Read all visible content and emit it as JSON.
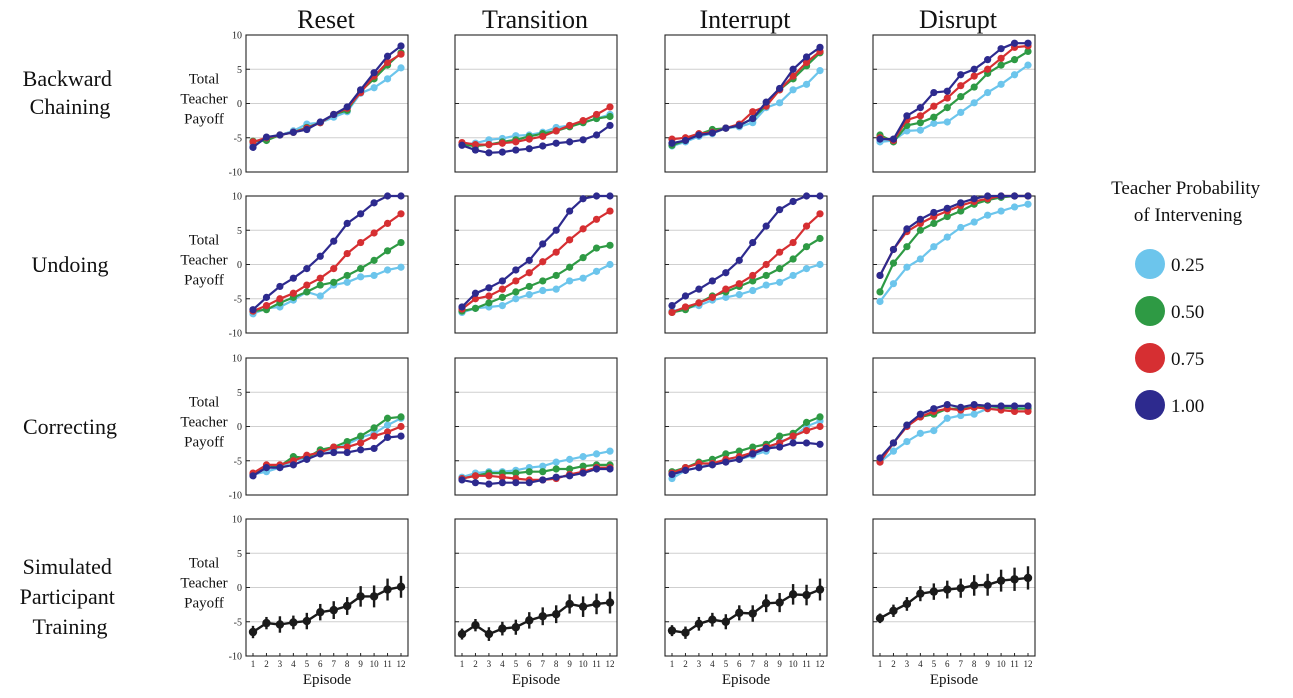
{
  "columns": [
    "Reset",
    "Transition",
    "Interrupt",
    "Disrupt"
  ],
  "rows": [
    {
      "label_lines": [
        "Backward",
        "Chaining"
      ]
    },
    {
      "label_lines": [
        "Undoing"
      ]
    },
    {
      "label_lines": [
        "Correcting"
      ]
    },
    {
      "label_lines": [
        "Simulated",
        "Participant",
        "Training"
      ]
    }
  ],
  "ylabel_lines": [
    "Total",
    "Teacher",
    "Payoff"
  ],
  "xlabel": "Episode",
  "legend": {
    "title_lines": [
      "Teacher Probability",
      "of Intervening"
    ],
    "entries": [
      {
        "label": "0.25",
        "color": "#6cc5ec"
      },
      {
        "label": "0.50",
        "color": "#2e9a44"
      },
      {
        "label": "0.75",
        "color": "#d62f32"
      },
      {
        "label": "1.00",
        "color": "#2d2a8e"
      }
    ]
  },
  "chart_data": {
    "type": "line",
    "x": [
      1,
      2,
      3,
      4,
      5,
      6,
      7,
      8,
      9,
      10,
      11,
      12
    ],
    "xticks": [
      "1",
      "2",
      "3",
      "4",
      "5",
      "6",
      "7",
      "8",
      "9",
      "10",
      "11",
      "12"
    ],
    "ylim": [
      -10,
      10
    ],
    "yticks": [
      10,
      5,
      0,
      -5,
      -10
    ],
    "yticklabels": [
      "10",
      "5",
      "0",
      "-5",
      "-10"
    ],
    "grid": true,
    "series_colors": [
      "#6cc5ec",
      "#2e9a44",
      "#d62f32",
      "#2d2a8e"
    ],
    "black_color": "#1a1a1a",
    "panels": [
      [
        [
          [
            -6.0,
            -5.2,
            -4.6,
            -4.0,
            -3.0,
            -2.8,
            -2.0,
            -1.2,
            1.5,
            2.3,
            3.6,
            5.2
          ],
          [
            -5.5,
            -5.4,
            -4.6,
            -4.2,
            -3.5,
            -2.8,
            -1.6,
            -1.0,
            1.8,
            3.6,
            5.6,
            7.4
          ],
          [
            -5.6,
            -5.0,
            -4.6,
            -4.2,
            -3.6,
            -2.8,
            -1.6,
            -0.7,
            1.6,
            4.0,
            6.0,
            7.2
          ],
          [
            -6.4,
            -4.9,
            -4.6,
            -4.2,
            -3.8,
            -2.7,
            -1.6,
            -0.5,
            2.0,
            4.5,
            6.9,
            8.4
          ]
        ],
        [
          [
            -6.0,
            -5.8,
            -5.3,
            -5.1,
            -4.7,
            -4.6,
            -4.2,
            -3.5,
            -3.2,
            -2.8,
            -2.2,
            -1.6
          ],
          [
            -6.0,
            -6.2,
            -6.0,
            -5.6,
            -5.3,
            -4.8,
            -4.4,
            -4.0,
            -3.4,
            -2.8,
            -2.2,
            -1.9
          ],
          [
            -5.7,
            -6.0,
            -6.0,
            -5.8,
            -5.6,
            -5.2,
            -4.8,
            -4.0,
            -3.2,
            -2.5,
            -1.6,
            -0.5
          ],
          [
            -6.1,
            -6.8,
            -7.2,
            -7.1,
            -6.8,
            -6.6,
            -6.2,
            -5.8,
            -5.6,
            -5.3,
            -4.6,
            -3.2
          ]
        ],
        [
          [
            -6.2,
            -5.6,
            -4.8,
            -4.4,
            -3.6,
            -3.4,
            -2.8,
            -0.6,
            0.1,
            2.0,
            2.8,
            4.8
          ],
          [
            -6.1,
            -5.4,
            -4.5,
            -3.8,
            -3.6,
            -3.2,
            -2.2,
            -0.3,
            2.0,
            3.6,
            5.5,
            7.4
          ],
          [
            -5.2,
            -5.0,
            -4.4,
            -4.2,
            -3.6,
            -3.0,
            -1.2,
            -0.4,
            2.0,
            4.0,
            6.0,
            7.6
          ],
          [
            -5.8,
            -5.4,
            -4.6,
            -4.3,
            -3.6,
            -3.2,
            -2.2,
            0.2,
            2.2,
            5.0,
            6.8,
            8.2
          ]
        ],
        [
          [
            -5.6,
            -5.4,
            -4.0,
            -3.9,
            -2.9,
            -2.7,
            -1.3,
            0.1,
            1.6,
            2.8,
            4.2,
            5.6
          ],
          [
            -4.6,
            -5.6,
            -3.2,
            -2.8,
            -2.0,
            -0.6,
            1.0,
            2.4,
            4.4,
            5.6,
            6.4,
            7.6
          ],
          [
            -5.0,
            -5.4,
            -2.4,
            -1.8,
            -0.4,
            0.8,
            2.6,
            4.0,
            5.0,
            6.6,
            8.2,
            8.4
          ],
          [
            -5.2,
            -5.2,
            -1.8,
            -0.6,
            1.6,
            1.8,
            4.2,
            5.0,
            6.4,
            8.0,
            8.8,
            8.8
          ]
        ]
      ],
      [
        [
          [
            -7.2,
            -6.4,
            -6.2,
            -5.2,
            -4.0,
            -4.6,
            -3.0,
            -2.6,
            -1.8,
            -1.6,
            -0.8,
            -0.4
          ],
          [
            -6.8,
            -6.6,
            -5.6,
            -4.8,
            -4.0,
            -3.0,
            -2.6,
            -1.6,
            -0.6,
            0.6,
            2.0,
            3.2
          ],
          [
            -6.8,
            -6.0,
            -5.0,
            -4.2,
            -3.0,
            -2.0,
            -0.6,
            1.6,
            3.2,
            4.6,
            6.0,
            7.4
          ],
          [
            -6.6,
            -4.8,
            -3.2,
            -2.0,
            -0.6,
            1.2,
            3.4,
            6.0,
            7.4,
            9.0,
            10.0,
            10.0
          ]
        ],
        [
          [
            -7.0,
            -6.4,
            -6.2,
            -6.0,
            -5.0,
            -4.4,
            -3.8,
            -3.6,
            -2.4,
            -2.0,
            -1.0,
            0.0
          ],
          [
            -6.8,
            -6.4,
            -5.6,
            -4.8,
            -4.0,
            -3.2,
            -2.4,
            -1.6,
            -0.4,
            1.0,
            2.4,
            2.8
          ],
          [
            -6.5,
            -5.0,
            -4.6,
            -3.6,
            -2.4,
            -1.2,
            0.4,
            1.8,
            3.6,
            5.2,
            6.6,
            7.8
          ],
          [
            -6.2,
            -4.2,
            -3.4,
            -2.4,
            -0.8,
            0.6,
            3.0,
            5.0,
            7.8,
            9.6,
            10.0,
            10.0
          ]
        ],
        [
          [
            -6.8,
            -6.4,
            -6.0,
            -5.2,
            -4.8,
            -4.4,
            -3.8,
            -3.0,
            -2.6,
            -1.6,
            -0.6,
            0.0
          ],
          [
            -7.0,
            -6.6,
            -5.6,
            -4.6,
            -4.0,
            -3.2,
            -2.4,
            -1.6,
            -0.6,
            0.8,
            2.6,
            3.8
          ],
          [
            -7.0,
            -6.2,
            -5.6,
            -4.8,
            -3.6,
            -2.8,
            -1.6,
            0.0,
            1.8,
            3.2,
            5.6,
            7.4
          ],
          [
            -6.0,
            -4.6,
            -3.6,
            -2.4,
            -1.2,
            0.6,
            3.2,
            5.6,
            8.0,
            9.2,
            10.0,
            10.0
          ]
        ],
        [
          [
            -5.4,
            -2.8,
            -0.4,
            0.8,
            2.6,
            4.0,
            5.4,
            6.2,
            7.2,
            7.8,
            8.4,
            8.8
          ],
          [
            -4.0,
            0.2,
            2.6,
            5.0,
            6.0,
            7.0,
            7.8,
            8.8,
            9.4,
            9.8,
            10.0,
            10.0
          ],
          [
            -1.6,
            2.2,
            4.8,
            6.0,
            7.0,
            7.8,
            8.6,
            9.2,
            9.6,
            10.0,
            10.0,
            10.0
          ],
          [
            -1.6,
            2.2,
            5.2,
            6.6,
            7.6,
            8.2,
            9.0,
            9.6,
            10.0,
            10.0,
            10.0,
            10.0
          ]
        ]
      ],
      [
        [
          [
            -7.0,
            -6.6,
            -6.0,
            -5.0,
            -4.6,
            -3.6,
            -3.4,
            -2.6,
            -1.6,
            -1.0,
            0.2,
            1.2
          ],
          [
            -7.0,
            -6.0,
            -5.8,
            -4.4,
            -4.6,
            -3.4,
            -3.0,
            -2.2,
            -1.4,
            -0.2,
            1.2,
            1.4
          ],
          [
            -6.8,
            -5.6,
            -5.6,
            -5.0,
            -4.2,
            -3.8,
            -3.0,
            -3.0,
            -2.4,
            -1.4,
            -0.8,
            0.0
          ],
          [
            -7.2,
            -6.0,
            -6.0,
            -5.6,
            -4.8,
            -4.0,
            -3.8,
            -3.8,
            -3.4,
            -3.2,
            -1.6,
            -1.4
          ]
        ],
        [
          [
            -7.4,
            -6.8,
            -6.6,
            -6.6,
            -6.4,
            -6.0,
            -5.8,
            -5.2,
            -4.8,
            -4.4,
            -4.0,
            -3.6
          ],
          [
            -7.6,
            -7.2,
            -6.8,
            -6.8,
            -6.8,
            -6.6,
            -6.6,
            -6.2,
            -6.2,
            -5.8,
            -5.6,
            -5.6
          ],
          [
            -7.6,
            -7.2,
            -7.2,
            -7.4,
            -7.6,
            -7.8,
            -7.8,
            -7.6,
            -7.0,
            -6.6,
            -6.0,
            -6.0
          ],
          [
            -7.8,
            -8.2,
            -8.4,
            -8.2,
            -8.2,
            -8.2,
            -7.8,
            -7.4,
            -7.2,
            -6.8,
            -6.2,
            -6.2
          ]
        ],
        [
          [
            -7.6,
            -6.4,
            -6.0,
            -5.4,
            -5.0,
            -4.8,
            -4.2,
            -3.6,
            -2.2,
            -1.6,
            0.0,
            0.8
          ],
          [
            -6.6,
            -6.0,
            -5.2,
            -4.8,
            -4.0,
            -3.6,
            -3.0,
            -2.6,
            -1.4,
            -1.0,
            0.6,
            1.4
          ],
          [
            -6.8,
            -6.0,
            -5.4,
            -5.4,
            -4.8,
            -4.4,
            -3.8,
            -3.0,
            -2.4,
            -1.4,
            -0.6,
            0.0
          ],
          [
            -7.0,
            -6.4,
            -6.0,
            -5.6,
            -5.2,
            -4.8,
            -4.0,
            -3.2,
            -3.0,
            -2.4,
            -2.4,
            -2.6
          ]
        ],
        [
          [
            -5.2,
            -3.6,
            -2.2,
            -1.0,
            -0.6,
            1.2,
            1.6,
            1.8,
            2.6,
            2.6,
            2.8,
            2.6
          ],
          [
            -5.0,
            -2.4,
            0.2,
            1.4,
            1.8,
            2.6,
            2.6,
            2.8,
            3.0,
            2.8,
            2.6,
            2.6
          ],
          [
            -5.2,
            -2.4,
            0.0,
            1.4,
            2.2,
            2.6,
            2.4,
            2.8,
            2.6,
            2.4,
            2.2,
            2.2
          ],
          [
            -4.6,
            -2.4,
            0.2,
            1.8,
            2.6,
            3.2,
            2.8,
            3.2,
            3.0,
            3.0,
            3.0,
            3.0
          ]
        ]
      ],
      [
        [
          [
            -6.5,
            -5.2,
            -5.4,
            -5.1,
            -4.9,
            -3.6,
            -3.3,
            -2.7,
            -1.3,
            -1.3,
            -0.3,
            0.1
          ]
        ],
        [
          [
            -6.8,
            -5.5,
            -6.8,
            -6.0,
            -5.8,
            -4.8,
            -4.2,
            -3.9,
            -2.4,
            -2.8,
            -2.4,
            -2.2
          ]
        ],
        [
          [
            -6.3,
            -6.6,
            -5.3,
            -4.7,
            -5.0,
            -3.7,
            -3.8,
            -2.3,
            -2.2,
            -1.0,
            -1.1,
            -0.3
          ]
        ],
        [
          [
            -4.5,
            -3.4,
            -2.4,
            -0.9,
            -0.6,
            -0.3,
            -0.1,
            0.3,
            0.4,
            1.0,
            1.2,
            1.4
          ]
        ]
      ]
    ],
    "errorbars": [
      [
        0.9,
        0.9,
        1.2,
        1.0,
        1.2,
        1.2,
        1.3,
        1.3,
        1.5,
        1.6,
        1.6,
        1.6
      ],
      [
        0.8,
        0.9,
        1.0,
        1.0,
        1.1,
        1.2,
        1.3,
        1.3,
        1.4,
        1.5,
        1.5,
        1.6
      ],
      [
        0.8,
        0.9,
        1.0,
        1.0,
        1.1,
        1.1,
        1.2,
        1.3,
        1.4,
        1.5,
        1.5,
        1.6
      ],
      [
        0.7,
        0.9,
        1.0,
        1.1,
        1.2,
        1.3,
        1.4,
        1.5,
        1.6,
        1.6,
        1.7,
        1.7
      ]
    ]
  }
}
